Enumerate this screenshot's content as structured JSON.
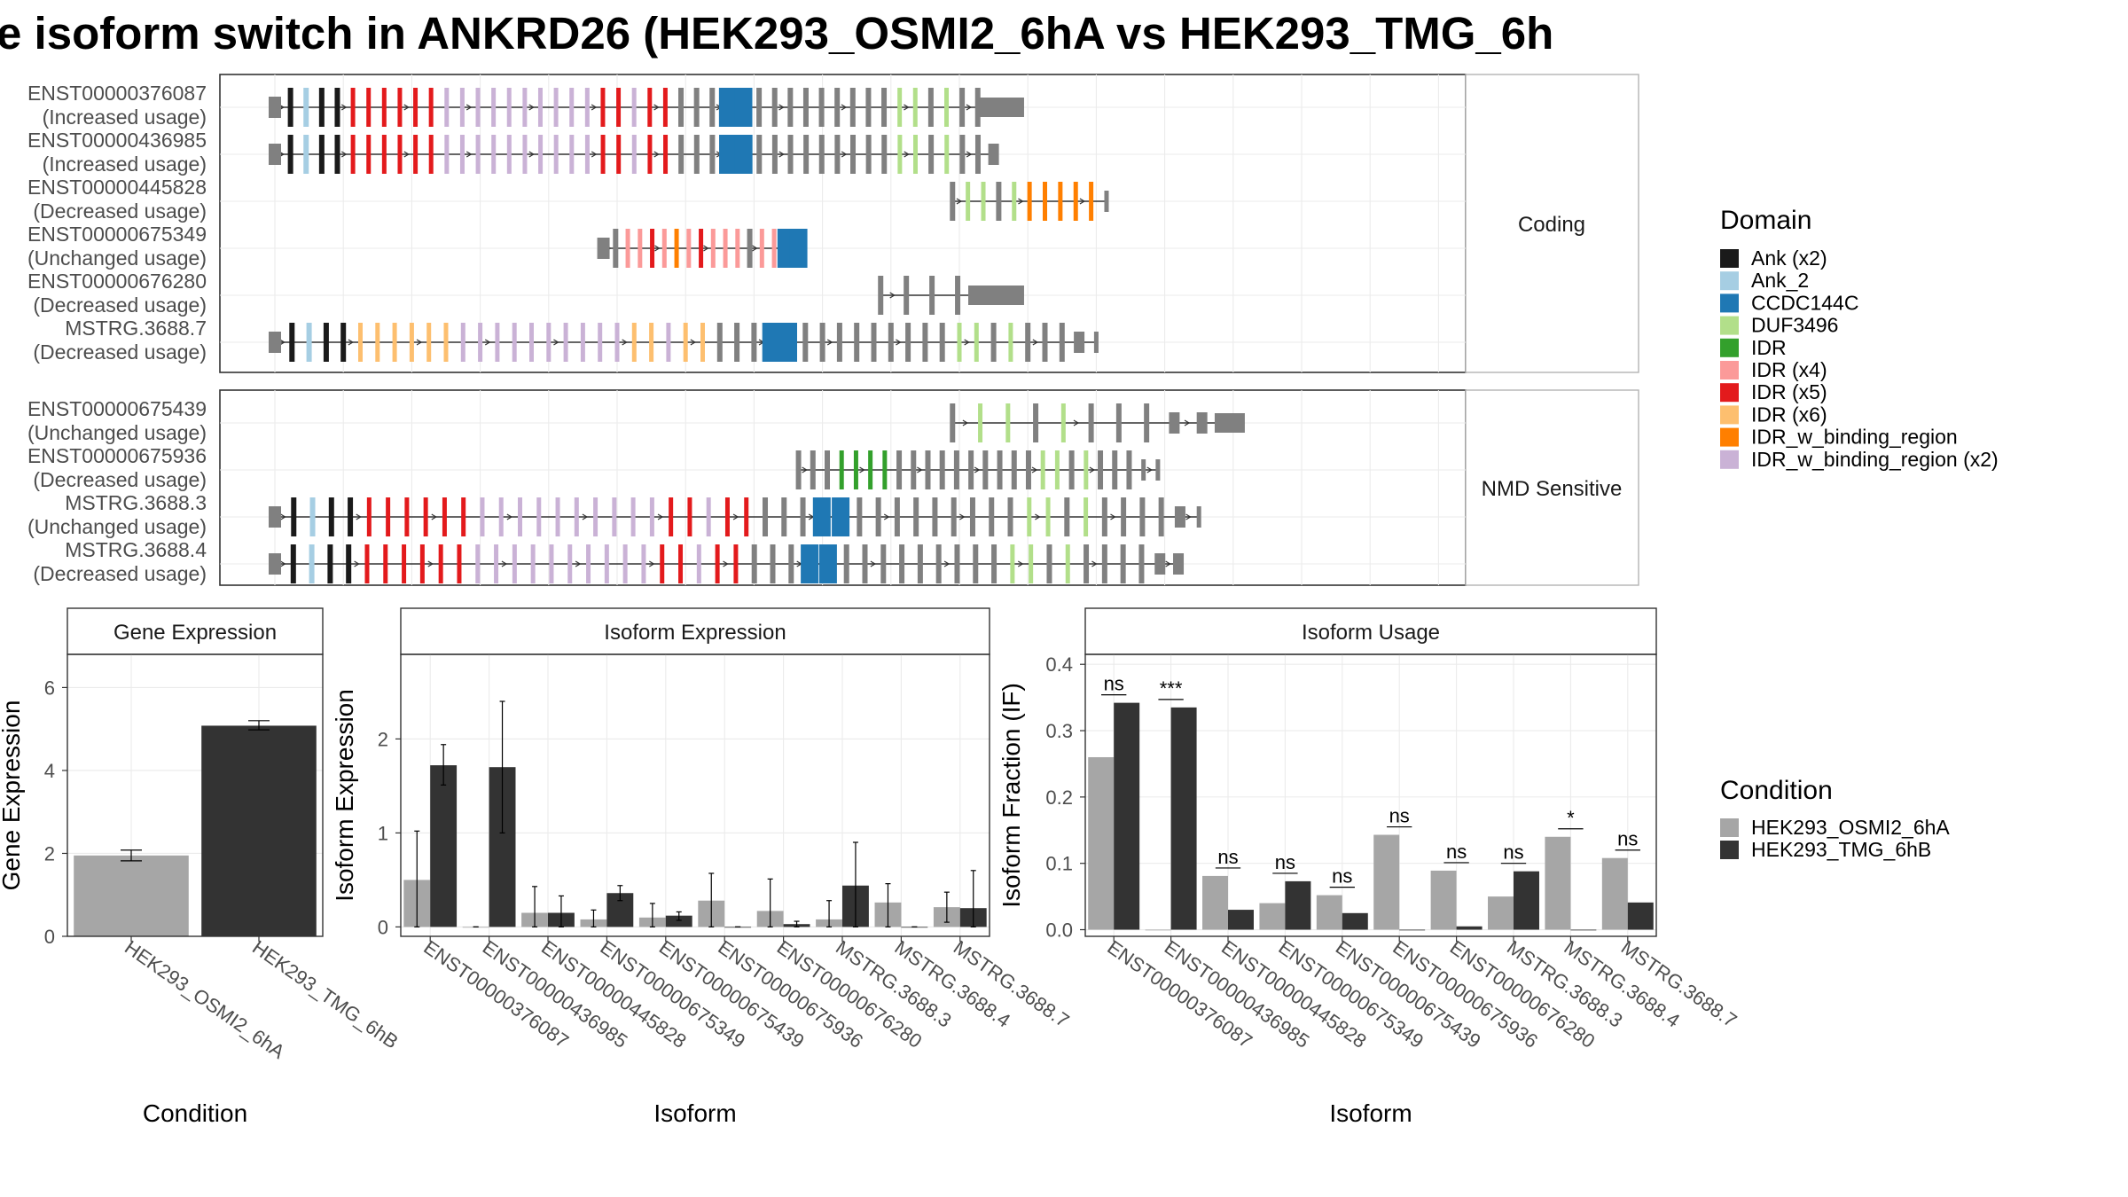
{
  "title": "e isoform switch in ANKRD26 (HEK293_OSMI2_6hA vs HEK293_TMG_6h",
  "colors": {
    "Ank (x2)": "#1a1a1a",
    "Ank_2": "#a6cee3",
    "CCDC144C": "#1f78b4",
    "DUF3496": "#b2df8a",
    "IDR": "#33a02c",
    "IDR (x4)": "#fb9a99",
    "IDR (x5)": "#e31a1c",
    "IDR (x6)": "#fdbf6f",
    "IDR_w_binding_region": "#ff7f00",
    "IDR_w_binding_region (x2)": "#cab2d6",
    "exon": "#808080",
    "cond_a": "#a6a6a6",
    "cond_b": "#333333"
  },
  "domain_legend": {
    "title": "Domain",
    "items": [
      "Ank (x2)",
      "Ank_2",
      "CCDC144C",
      "DUF3496",
      "IDR",
      "IDR (x4)",
      "IDR (x5)",
      "IDR (x6)",
      "IDR_w_binding_region",
      "IDR_w_binding_region (x2)"
    ]
  },
  "condition_legend": {
    "title": "Condition",
    "items": [
      "HEK293_OSMI2_6hA",
      "HEK293_TMG_6hB"
    ]
  },
  "structure": {
    "panels": [
      {
        "strip": "Coding",
        "transcripts": [
          {
            "id": "ENST00000376087",
            "usage": "(Increased usage)",
            "from": 0.0,
            "to": 0.715,
            "exons": [
              "F",
              "1",
              "2",
              "A",
              "A",
              "5",
              "5",
              "5",
              "5",
              "5",
              "5",
              "J",
              "J",
              "J",
              "J",
              "J",
              "J",
              "J",
              "J",
              "J",
              "J",
              "5",
              "5",
              "J",
              "5",
              "5",
              "x",
              "x",
              "x",
              "C",
              "C",
              "x",
              "x",
              "x",
              "x",
              "x",
              "x",
              "x",
              "x",
              "x",
              "D",
              "D",
              "x",
              "D",
              "x",
              "x",
              "X",
              "X"
            ]
          },
          {
            "id": "ENST00000436985",
            "usage": "(Increased usage)",
            "from": 0.0,
            "to": 0.7,
            "exons": [
              "F",
              "1",
              "2",
              "A",
              "A",
              "5",
              "5",
              "5",
              "5",
              "5",
              "5",
              "J",
              "J",
              "J",
              "J",
              "J",
              "J",
              "J",
              "J",
              "J",
              "J",
              "5",
              "5",
              "J",
              "5",
              "5",
              "x",
              "x",
              "x",
              "C",
              "C",
              "x",
              "x",
              "x",
              "x",
              "x",
              "x",
              "x",
              "x",
              "x",
              "D",
              "D",
              "x",
              "D",
              "x",
              "x",
              "E"
            ]
          },
          {
            "id": "ENST00000445828",
            "usage": "(Decreased usage)",
            "from": 0.66,
            "to": 0.81,
            "exons": [
              "x",
              "D",
              "D",
              "x",
              "D",
              "B",
              "B",
              "B",
              "B",
              "B",
              "T"
            ]
          },
          {
            "id": "ENST00000675349",
            "usage": "(Unchanged usage)",
            "from": 0.32,
            "to": 0.51,
            "exons": [
              "F",
              "x",
              "4",
              "4",
              "5",
              "4",
              "B",
              "4",
              "5",
              "4",
              "4",
              "4",
              "x",
              "4",
              "4",
              "C",
              "C"
            ]
          },
          {
            "id": "ENST00000676280",
            "usage": "(Decreased usage)",
            "from": 0.59,
            "to": 0.715,
            "exons": [
              "x",
              "x",
              "x",
              "x",
              "X",
              "X"
            ]
          },
          {
            "id": "MSTRG.3688.7",
            "usage": "(Decreased usage)",
            "from": 0.0,
            "to": 0.8,
            "exons": [
              "F",
              "1",
              "2",
              "A",
              "A",
              "6",
              "6",
              "6",
              "6",
              "6",
              "6",
              "J",
              "J",
              "J",
              "J",
              "J",
              "J",
              "J",
              "J",
              "J",
              "J",
              "6",
              "6",
              "J",
              "6",
              "6",
              "x",
              "x",
              "x",
              "C",
              "C",
              "x",
              "x",
              "x",
              "x",
              "x",
              "x",
              "x",
              "x",
              "x",
              "D",
              "D",
              "x",
              "D",
              "x",
              "x",
              "x",
              "E",
              "T"
            ]
          }
        ]
      },
      {
        "strip": "NMD Sensitive",
        "transcripts": [
          {
            "id": "ENST00000675439",
            "usage": "(Unchanged usage)",
            "from": 0.66,
            "to": 0.93,
            "exons": [
              "x",
              "D",
              "D",
              "x",
              "D",
              "x",
              "x",
              "x",
              "E",
              "E",
              "X"
            ]
          },
          {
            "id": "ENST00000675936",
            "usage": "(Decreased usage)",
            "from": 0.51,
            "to": 0.86,
            "exons": [
              "x",
              "x",
              "x",
              "I",
              "I",
              "I",
              "I",
              "x",
              "x",
              "x",
              "x",
              "x",
              "x",
              "x",
              "x",
              "x",
              "x",
              "D",
              "D",
              "x",
              "D",
              "x",
              "x",
              "x",
              "T",
              "T"
            ]
          },
          {
            "id": "MSTRG.3688.3",
            "usage": "(Unchanged usage)",
            "from": 0.0,
            "to": 0.9,
            "exons": [
              "F",
              "1",
              "2",
              "A",
              "A",
              "5",
              "5",
              "5",
              "5",
              "5",
              "5",
              "J",
              "J",
              "J",
              "J",
              "J",
              "J",
              "J",
              "J",
              "J",
              "J",
              "5",
              "5",
              "J",
              "5",
              "5",
              "x",
              "x",
              "x",
              "C",
              "C",
              "x",
              "x",
              "x",
              "x",
              "x",
              "x",
              "x",
              "x",
              "x",
              "D",
              "D",
              "x",
              "D",
              "x",
              "x",
              "x",
              "x",
              "E",
              "T"
            ]
          },
          {
            "id": "MSTRG.3688.4",
            "usage": "(Decreased usage)",
            "from": 0.0,
            "to": 0.88,
            "exons": [
              "F",
              "1",
              "2",
              "A",
              "A",
              "5",
              "5",
              "5",
              "5",
              "5",
              "5",
              "J",
              "J",
              "J",
              "J",
              "J",
              "J",
              "J",
              "J",
              "J",
              "J",
              "5",
              "5",
              "J",
              "5",
              "5",
              "x",
              "x",
              "x",
              "C",
              "C",
              "x",
              "x",
              "x",
              "x",
              "x",
              "x",
              "x",
              "x",
              "x",
              "D",
              "D",
              "x",
              "D",
              "x",
              "x",
              "x",
              "x",
              "E",
              "E"
            ]
          }
        ]
      }
    ]
  },
  "chart_data": [
    {
      "type": "bar",
      "title": "Gene Expression",
      "xlabel": "Condition",
      "ylabel": "Gene Expression",
      "ylim": [
        0,
        6.8
      ],
      "yticks": [
        "0",
        "2",
        "4",
        "6"
      ],
      "categories": [
        "HEK293_OSMI2_6hA",
        "HEK293_TMG_6hB"
      ],
      "values": [
        1.95,
        5.08
      ],
      "error": [
        [
          1.82,
          2.08
        ],
        [
          4.98,
          5.2
        ]
      ]
    },
    {
      "type": "bar",
      "title": "Isoform Expression",
      "xlabel": "Isoform",
      "ylabel": "Isoform Expression",
      "ylim": [
        -0.1,
        2.9
      ],
      "yticks": [
        "0",
        "1",
        "2"
      ],
      "categories": [
        "ENST00000376087",
        "ENST00000436985",
        "ENST00000445828",
        "ENST00000675349",
        "ENST00000675439",
        "ENST00000675936",
        "ENST00000676280",
        "MSTRG.3688.3",
        "MSTRG.3688.4",
        "MSTRG.3688.7"
      ],
      "series": [
        {
          "name": "HEK293_OSMI2_6hA",
          "values": [
            0.5,
            0,
            0.15,
            0.08,
            0.1,
            0.28,
            0.17,
            0.08,
            0.26,
            0.21
          ],
          "error": [
            [
              0,
              1.02
            ],
            [
              0,
              0
            ],
            [
              0,
              0.43
            ],
            [
              0,
              0.18
            ],
            [
              0,
              0.25
            ],
            [
              0,
              0.57
            ],
            [
              0,
              0.51
            ],
            [
              0,
              0.28
            ],
            [
              0,
              0.46
            ],
            [
              0.05,
              0.37
            ]
          ]
        },
        {
          "name": "HEK293_TMG_6hB",
          "values": [
            1.72,
            1.7,
            0.15,
            0.36,
            0.12,
            0,
            0.03,
            0.44,
            0,
            0.2
          ],
          "error": [
            [
              1.51,
              1.94
            ],
            [
              1.0,
              2.4
            ],
            [
              0,
              0.33
            ],
            [
              0.28,
              0.44
            ],
            [
              0.07,
              0.16
            ],
            [
              0,
              0
            ],
            [
              0,
              0.06
            ],
            [
              0,
              0.9
            ],
            [
              0,
              0
            ],
            [
              0,
              0.6
            ]
          ]
        }
      ]
    },
    {
      "type": "bar",
      "title": "Isoform Usage",
      "xlabel": "Isoform",
      "ylabel": "Isoform Fraction (IF)",
      "ylim": [
        -0.01,
        0.415
      ],
      "yticks": [
        "0.0",
        "0.1",
        "0.2",
        "0.3",
        "0.4"
      ],
      "categories": [
        "ENST00000376087",
        "ENST00000436985",
        "ENST00000445828",
        "ENST00000675349",
        "ENST00000675439",
        "ENST00000675936",
        "ENST00000676280",
        "MSTRG.3688.3",
        "MSTRG.3688.4",
        "MSTRG.3688.7"
      ],
      "series": [
        {
          "name": "HEK293_OSMI2_6hA",
          "values": [
            0.26,
            0,
            0.081,
            0.04,
            0.052,
            0.143,
            0.089,
            0.05,
            0.14,
            0.108
          ]
        },
        {
          "name": "HEK293_TMG_6hB",
          "values": [
            0.342,
            0.335,
            0.03,
            0.073,
            0.025,
            0,
            0.005,
            0.088,
            0,
            0.041
          ]
        }
      ],
      "significance": [
        "ns",
        "***",
        "ns",
        "ns",
        "ns",
        "ns",
        "ns",
        "ns",
        "*",
        "ns"
      ]
    }
  ]
}
